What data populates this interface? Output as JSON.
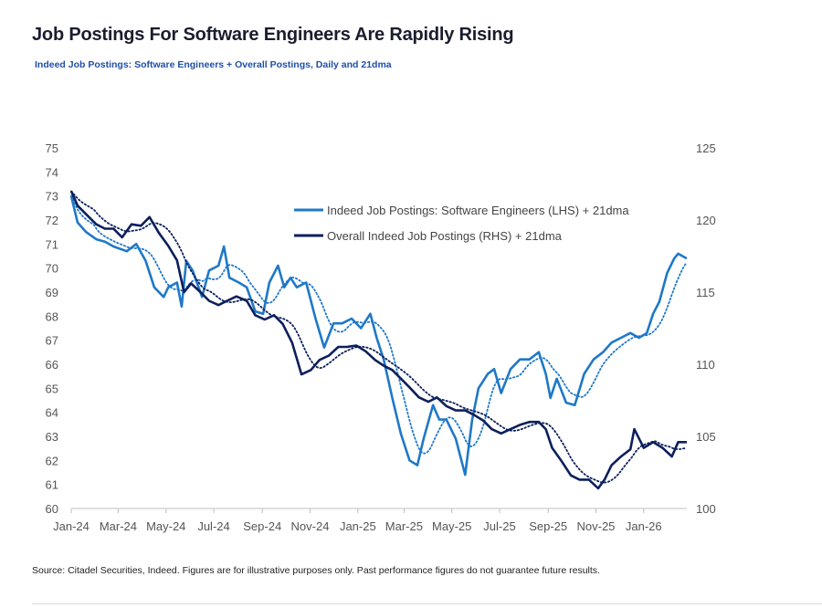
{
  "title": "Job Postings For Software Engineers Are Rapidly Rising",
  "subtitle": "Indeed Job Postings: Software Engineers + Overall Postings, Daily and 21dma",
  "source": "Source: Citadel Securities, Indeed. Figures are for illustrative purposes only. Past performance figures do not guarantee future results.",
  "chart_data": {
    "type": "line",
    "x_tick_labels": [
      "Jan-24",
      "Mar-24",
      "May-24",
      "Jul-24",
      "Sep-24",
      "Nov-24",
      "Jan-25",
      "Mar-25",
      "May-25",
      "Jul-25",
      "Sep-25",
      "Nov-25",
      "Jan-26"
    ],
    "x_ticks": [
      "2024-01-01",
      "2024-03-01",
      "2024-05-01",
      "2024-07-01",
      "2024-09-01",
      "2024-11-01",
      "2025-01-01",
      "2025-03-01",
      "2025-05-01",
      "2025-07-01",
      "2025-09-01",
      "2025-11-01",
      "2026-01-01"
    ],
    "y_left": {
      "range": [
        60,
        75
      ],
      "ticks": [
        60,
        61,
        62,
        63,
        64,
        65,
        66,
        67,
        68,
        69,
        70,
        71,
        72,
        73,
        74,
        75
      ]
    },
    "y_right": {
      "range": [
        100,
        125
      ],
      "ticks": [
        100,
        105,
        110,
        115,
        120,
        125
      ]
    },
    "grid": false,
    "legend_placement": "top-center",
    "moving_average_days": 21,
    "series": [
      {
        "name": "Indeed Job Postings: Software Engineers (LHS) + 21dma",
        "axis": "left",
        "color": "#1f78c8",
        "points": [
          [
            "2024-01-01",
            73.0
          ],
          [
            "2024-01-09",
            71.9
          ],
          [
            "2024-01-20",
            71.5
          ],
          [
            "2024-02-02",
            71.2
          ],
          [
            "2024-02-13",
            71.1
          ],
          [
            "2024-02-24",
            70.9
          ],
          [
            "2024-03-12",
            70.7
          ],
          [
            "2024-03-24",
            71.0
          ],
          [
            "2024-04-05",
            70.3
          ],
          [
            "2024-04-16",
            69.2
          ],
          [
            "2024-04-28",
            68.8
          ],
          [
            "2024-05-04",
            69.2
          ],
          [
            "2024-05-15",
            69.4
          ],
          [
            "2024-05-21",
            68.4
          ],
          [
            "2024-05-27",
            70.3
          ],
          [
            "2024-06-04",
            69.9
          ],
          [
            "2024-06-16",
            68.8
          ],
          [
            "2024-06-25",
            69.9
          ],
          [
            "2024-07-07",
            70.1
          ],
          [
            "2024-07-14",
            70.9
          ],
          [
            "2024-07-21",
            69.6
          ],
          [
            "2024-08-02",
            69.4
          ],
          [
            "2024-08-12",
            69.2
          ],
          [
            "2024-08-23",
            68.2
          ],
          [
            "2024-09-02",
            68.1
          ],
          [
            "2024-09-10",
            69.4
          ],
          [
            "2024-09-21",
            70.1
          ],
          [
            "2024-09-29",
            69.2
          ],
          [
            "2024-10-07",
            69.6
          ],
          [
            "2024-10-15",
            69.2
          ],
          [
            "2024-10-27",
            69.4
          ],
          [
            "2024-11-08",
            67.9
          ],
          [
            "2024-11-19",
            66.7
          ],
          [
            "2024-12-01",
            67.7
          ],
          [
            "2024-12-12",
            67.7
          ],
          [
            "2024-12-24",
            67.9
          ],
          [
            "2025-01-05",
            67.5
          ],
          [
            "2025-01-17",
            68.1
          ],
          [
            "2025-01-25",
            67.1
          ],
          [
            "2025-02-03",
            66.2
          ],
          [
            "2025-02-14",
            64.6
          ],
          [
            "2025-02-25",
            63.1
          ],
          [
            "2025-03-08",
            62.0
          ],
          [
            "2025-03-18",
            61.8
          ],
          [
            "2025-03-26",
            62.9
          ],
          [
            "2025-04-07",
            64.3
          ],
          [
            "2025-04-15",
            63.7
          ],
          [
            "2025-04-24",
            63.7
          ],
          [
            "2025-05-06",
            62.9
          ],
          [
            "2025-05-18",
            61.4
          ],
          [
            "2025-05-27",
            63.7
          ],
          [
            "2025-06-04",
            65.0
          ],
          [
            "2025-06-16",
            65.6
          ],
          [
            "2025-06-24",
            65.8
          ],
          [
            "2025-07-03",
            64.8
          ],
          [
            "2025-07-15",
            65.8
          ],
          [
            "2025-07-27",
            66.2
          ],
          [
            "2025-08-08",
            66.2
          ],
          [
            "2025-08-20",
            66.5
          ],
          [
            "2025-08-29",
            65.6
          ],
          [
            "2025-09-04",
            64.6
          ],
          [
            "2025-09-12",
            65.4
          ],
          [
            "2025-09-24",
            64.4
          ],
          [
            "2025-10-05",
            64.3
          ],
          [
            "2025-10-17",
            65.6
          ],
          [
            "2025-10-29",
            66.2
          ],
          [
            "2025-11-10",
            66.5
          ],
          [
            "2025-11-21",
            66.9
          ],
          [
            "2025-12-03",
            67.1
          ],
          [
            "2025-12-15",
            67.3
          ],
          [
            "2025-12-26",
            67.1
          ],
          [
            "2026-01-05",
            67.3
          ],
          [
            "2026-01-13",
            68.1
          ],
          [
            "2026-01-21",
            68.6
          ],
          [
            "2026-01-31",
            69.8
          ],
          [
            "2026-02-09",
            70.4
          ],
          [
            "2026-02-14",
            70.6
          ],
          [
            "2026-02-25",
            70.4
          ]
        ]
      },
      {
        "name": "Overall Indeed Job Postings (RHS) + 21dma",
        "axis": "right",
        "color": "#0c1f5c",
        "points": [
          [
            "2024-01-01",
            122.0
          ],
          [
            "2024-01-09",
            121.0
          ],
          [
            "2024-01-20",
            120.4
          ],
          [
            "2024-02-02",
            119.7
          ],
          [
            "2024-02-13",
            119.4
          ],
          [
            "2024-02-24",
            119.4
          ],
          [
            "2024-03-06",
            118.8
          ],
          [
            "2024-03-18",
            119.7
          ],
          [
            "2024-03-30",
            119.6
          ],
          [
            "2024-04-10",
            120.2
          ],
          [
            "2024-04-22",
            119.1
          ],
          [
            "2024-05-04",
            118.2
          ],
          [
            "2024-05-15",
            117.2
          ],
          [
            "2024-05-24",
            115.0
          ],
          [
            "2024-06-02",
            115.6
          ],
          [
            "2024-06-14",
            115.0
          ],
          [
            "2024-06-25",
            114.4
          ],
          [
            "2024-07-07",
            114.1
          ],
          [
            "2024-07-18",
            114.4
          ],
          [
            "2024-07-30",
            114.7
          ],
          [
            "2024-08-12",
            114.4
          ],
          [
            "2024-08-23",
            113.4
          ],
          [
            "2024-09-04",
            113.1
          ],
          [
            "2024-09-16",
            113.4
          ],
          [
            "2024-09-27",
            112.8
          ],
          [
            "2024-10-09",
            111.5
          ],
          [
            "2024-10-21",
            109.3
          ],
          [
            "2024-11-02",
            109.6
          ],
          [
            "2024-11-13",
            110.3
          ],
          [
            "2024-11-25",
            110.6
          ],
          [
            "2024-12-07",
            111.2
          ],
          [
            "2024-12-18",
            111.2
          ],
          [
            "2024-12-30",
            111.3
          ],
          [
            "2025-01-11",
            110.9
          ],
          [
            "2025-01-23",
            110.3
          ],
          [
            "2025-02-03",
            109.9
          ],
          [
            "2025-02-14",
            109.6
          ],
          [
            "2025-02-25",
            109.0
          ],
          [
            "2025-03-08",
            108.4
          ],
          [
            "2025-03-20",
            107.7
          ],
          [
            "2025-04-01",
            107.4
          ],
          [
            "2025-04-12",
            107.7
          ],
          [
            "2025-04-24",
            107.1
          ],
          [
            "2025-05-06",
            106.8
          ],
          [
            "2025-05-18",
            106.8
          ],
          [
            "2025-05-29",
            106.5
          ],
          [
            "2025-06-10",
            106.1
          ],
          [
            "2025-06-21",
            105.5
          ],
          [
            "2025-07-03",
            105.2
          ],
          [
            "2025-07-15",
            105.5
          ],
          [
            "2025-07-27",
            105.8
          ],
          [
            "2025-08-08",
            106.0
          ],
          [
            "2025-08-20",
            106.0
          ],
          [
            "2025-08-29",
            105.5
          ],
          [
            "2025-09-06",
            104.2
          ],
          [
            "2025-09-18",
            103.3
          ],
          [
            "2025-09-30",
            102.3
          ],
          [
            "2025-10-11",
            102.0
          ],
          [
            "2025-10-23",
            102.0
          ],
          [
            "2025-11-04",
            101.4
          ],
          [
            "2025-11-12",
            102.0
          ],
          [
            "2025-11-21",
            103.0
          ],
          [
            "2025-12-03",
            103.6
          ],
          [
            "2025-12-15",
            104.1
          ],
          [
            "2025-12-20",
            105.5
          ],
          [
            "2026-01-01",
            104.2
          ],
          [
            "2026-01-13",
            104.6
          ],
          [
            "2026-01-25",
            104.2
          ],
          [
            "2026-02-06",
            103.6
          ],
          [
            "2026-02-14",
            104.6
          ],
          [
            "2026-02-25",
            104.6
          ]
        ]
      }
    ]
  }
}
